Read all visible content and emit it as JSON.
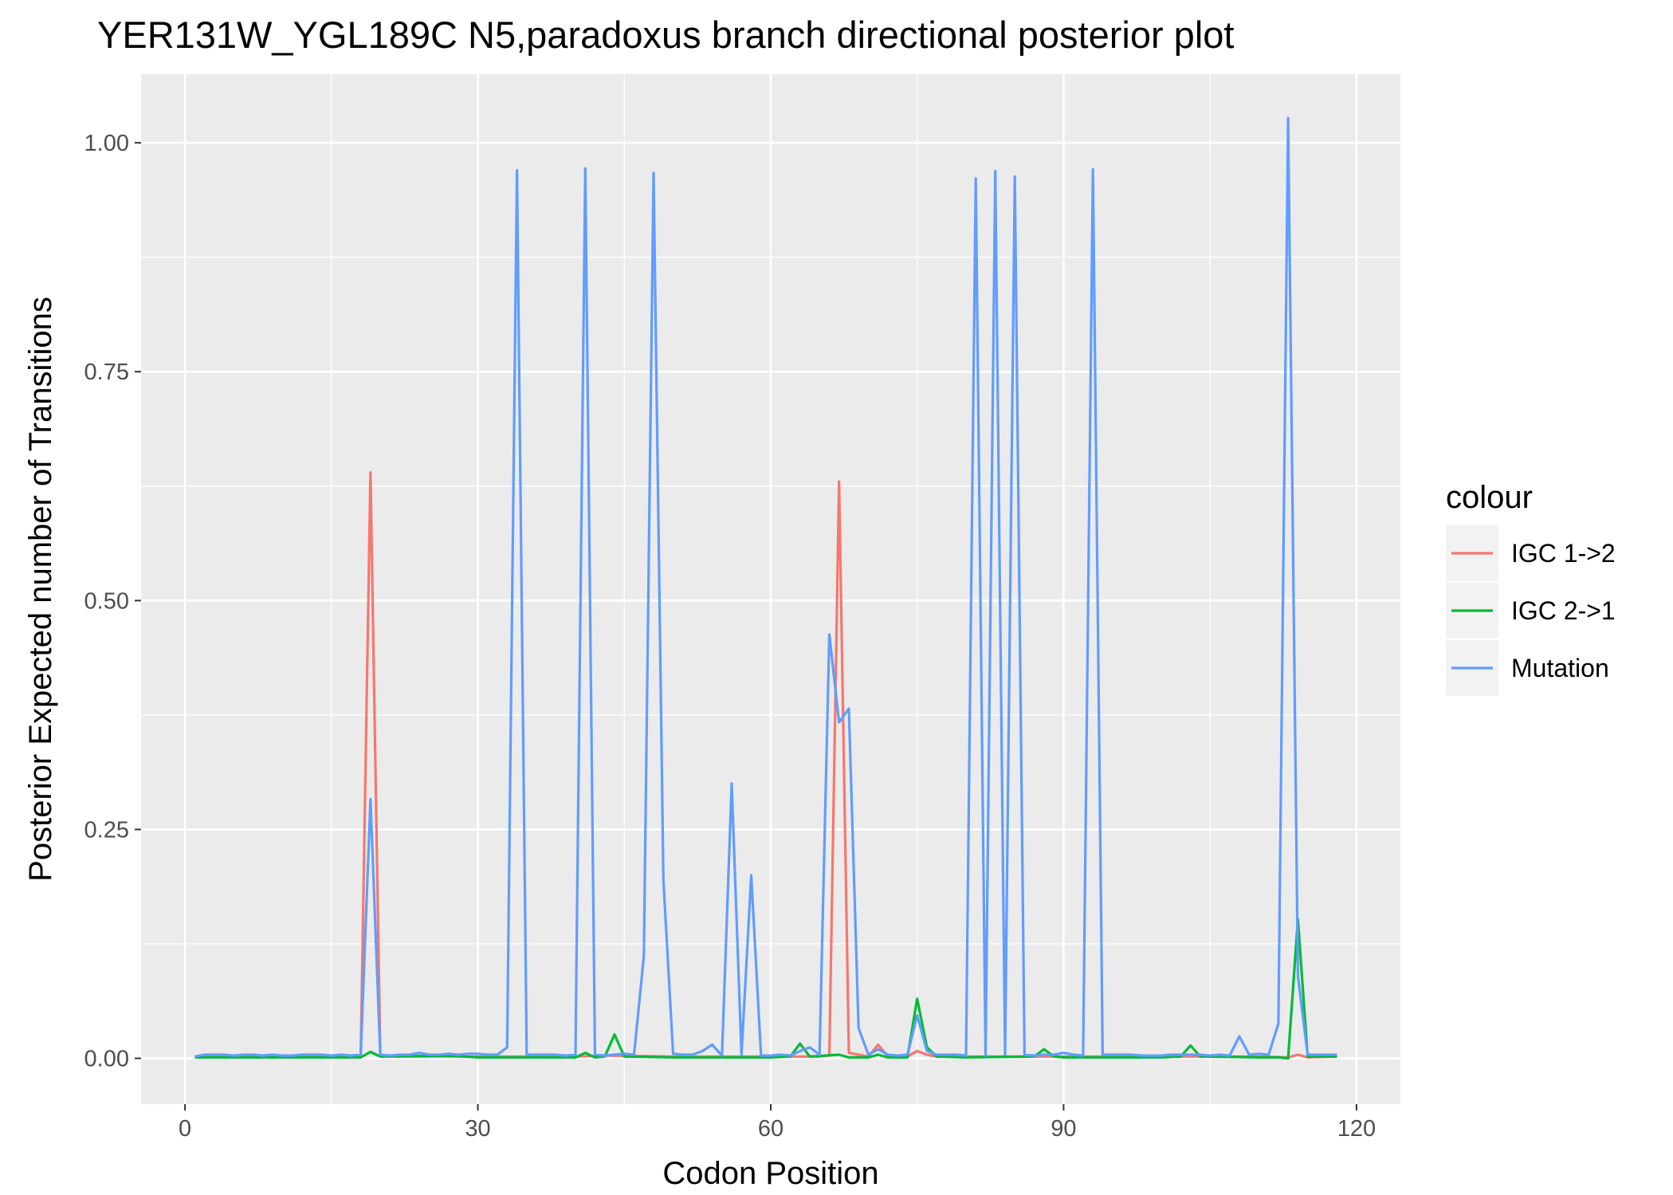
{
  "chart_data": {
    "type": "line",
    "title": "YER131W_YGL189C N5,paradoxus branch directional posterior plot",
    "xlabel": "Codon Position",
    "ylabel": "Posterior Expected number of Transitions",
    "xlim": [
      -4.5,
      124.5
    ],
    "ylim": [
      -0.05,
      1.075
    ],
    "x_ticks": [
      0,
      30,
      60,
      90,
      120
    ],
    "y_ticks": [
      0.0,
      0.25,
      0.5,
      0.75,
      1.0
    ],
    "x_tick_labels": [
      "0",
      "30",
      "60",
      "90",
      "120"
    ],
    "y_tick_labels": [
      "0.00",
      "0.25",
      "0.50",
      "0.75",
      "1.00"
    ],
    "grid": true,
    "legend": {
      "title": "colour",
      "position": "right",
      "entries": [
        "IGC 1->2",
        "IGC 2->1",
        "Mutation"
      ]
    },
    "series": [
      {
        "name": "IGC 1->2",
        "color": "#F8766D",
        "x": [
          1,
          17,
          18,
          19,
          20,
          21,
          30,
          40,
          43,
          50,
          60,
          65,
          66,
          67,
          68,
          70,
          71,
          72,
          74,
          75,
          76,
          77,
          80,
          88,
          90,
          100,
          110,
          113,
          114,
          115,
          118
        ],
        "y": [
          0.002,
          0.002,
          0.003,
          0.64,
          0.004,
          0.002,
          0.002,
          0.002,
          0.003,
          0.002,
          0.002,
          0.002,
          0.003,
          0.63,
          0.006,
          0.002,
          0.015,
          0.002,
          0.002,
          0.008,
          0.004,
          0.002,
          0.002,
          0.002,
          0.002,
          0.002,
          0.002,
          0.001,
          0.004,
          0.001,
          0.002
        ]
      },
      {
        "name": "IGC 2->1",
        "color": "#00BA38",
        "x": [
          1,
          18,
          19,
          20,
          27,
          30,
          40,
          41,
          42,
          43,
          44,
          45,
          50,
          60,
          62,
          63,
          64,
          67,
          68,
          70,
          71,
          72,
          74,
          75,
          76,
          77,
          80,
          87,
          88,
          89,
          90,
          100,
          102,
          103,
          104,
          110,
          112,
          113,
          114,
          115,
          118
        ],
        "y": [
          0.001,
          0.001,
          0.007,
          0.002,
          0.003,
          0.001,
          0.001,
          0.006,
          0.001,
          0.002,
          0.026,
          0.002,
          0.001,
          0.001,
          0.002,
          0.016,
          0.002,
          0.004,
          0.001,
          0.001,
          0.004,
          0.001,
          0.001,
          0.065,
          0.012,
          0.002,
          0.001,
          0.002,
          0.01,
          0.002,
          0.001,
          0.001,
          0.002,
          0.014,
          0.002,
          0.001,
          0.001,
          0.0,
          0.152,
          0.002,
          0.002
        ]
      },
      {
        "name": "Mutation",
        "color": "#619CFF",
        "x": [
          1,
          2,
          3,
          4,
          5,
          6,
          7,
          8,
          9,
          10,
          11,
          12,
          13,
          14,
          15,
          16,
          17,
          18,
          19,
          20,
          21,
          22,
          23,
          24,
          25,
          26,
          27,
          28,
          29,
          30,
          31,
          32,
          33,
          34,
          35,
          36,
          37,
          38,
          39,
          40,
          41,
          42,
          43,
          44,
          45,
          46,
          47,
          48,
          49,
          50,
          51,
          52,
          53,
          54,
          55,
          56,
          57,
          58,
          59,
          60,
          61,
          62,
          63,
          64,
          65,
          66,
          67,
          68,
          69,
          70,
          71,
          72,
          73,
          74,
          75,
          76,
          77,
          78,
          79,
          80,
          81,
          82,
          83,
          84,
          85,
          86,
          87,
          88,
          89,
          90,
          91,
          92,
          93,
          94,
          95,
          96,
          97,
          98,
          99,
          100,
          101,
          102,
          103,
          104,
          105,
          106,
          107,
          108,
          109,
          110,
          111,
          112,
          113,
          114,
          115,
          116,
          117,
          118
        ],
        "y": [
          0.002,
          0.004,
          0.004,
          0.004,
          0.003,
          0.004,
          0.004,
          0.003,
          0.004,
          0.003,
          0.003,
          0.004,
          0.004,
          0.004,
          0.003,
          0.004,
          0.003,
          0.004,
          0.283,
          0.004,
          0.003,
          0.004,
          0.004,
          0.006,
          0.004,
          0.004,
          0.005,
          0.004,
          0.005,
          0.005,
          0.004,
          0.004,
          0.012,
          0.97,
          0.004,
          0.004,
          0.004,
          0.004,
          0.003,
          0.004,
          0.972,
          0.004,
          0.003,
          0.004,
          0.005,
          0.004,
          0.112,
          0.967,
          0.195,
          0.005,
          0.004,
          0.004,
          0.008,
          0.015,
          0.003,
          0.3,
          0.004,
          0.2,
          0.003,
          0.003,
          0.004,
          0.003,
          0.008,
          0.012,
          0.004,
          0.463,
          0.367,
          0.382,
          0.033,
          0.004,
          0.01,
          0.004,
          0.003,
          0.004,
          0.047,
          0.008,
          0.004,
          0.004,
          0.004,
          0.003,
          0.961,
          0.003,
          0.969,
          0.004,
          0.963,
          0.004,
          0.003,
          0.004,
          0.004,
          0.006,
          0.004,
          0.003,
          0.971,
          0.004,
          0.004,
          0.004,
          0.004,
          0.003,
          0.003,
          0.003,
          0.004,
          0.004,
          0.004,
          0.004,
          0.003,
          0.004,
          0.003,
          0.024,
          0.004,
          0.005,
          0.004,
          0.038,
          1.027,
          0.09,
          0.004,
          0.004,
          0.004,
          0.004
        ]
      }
    ]
  }
}
